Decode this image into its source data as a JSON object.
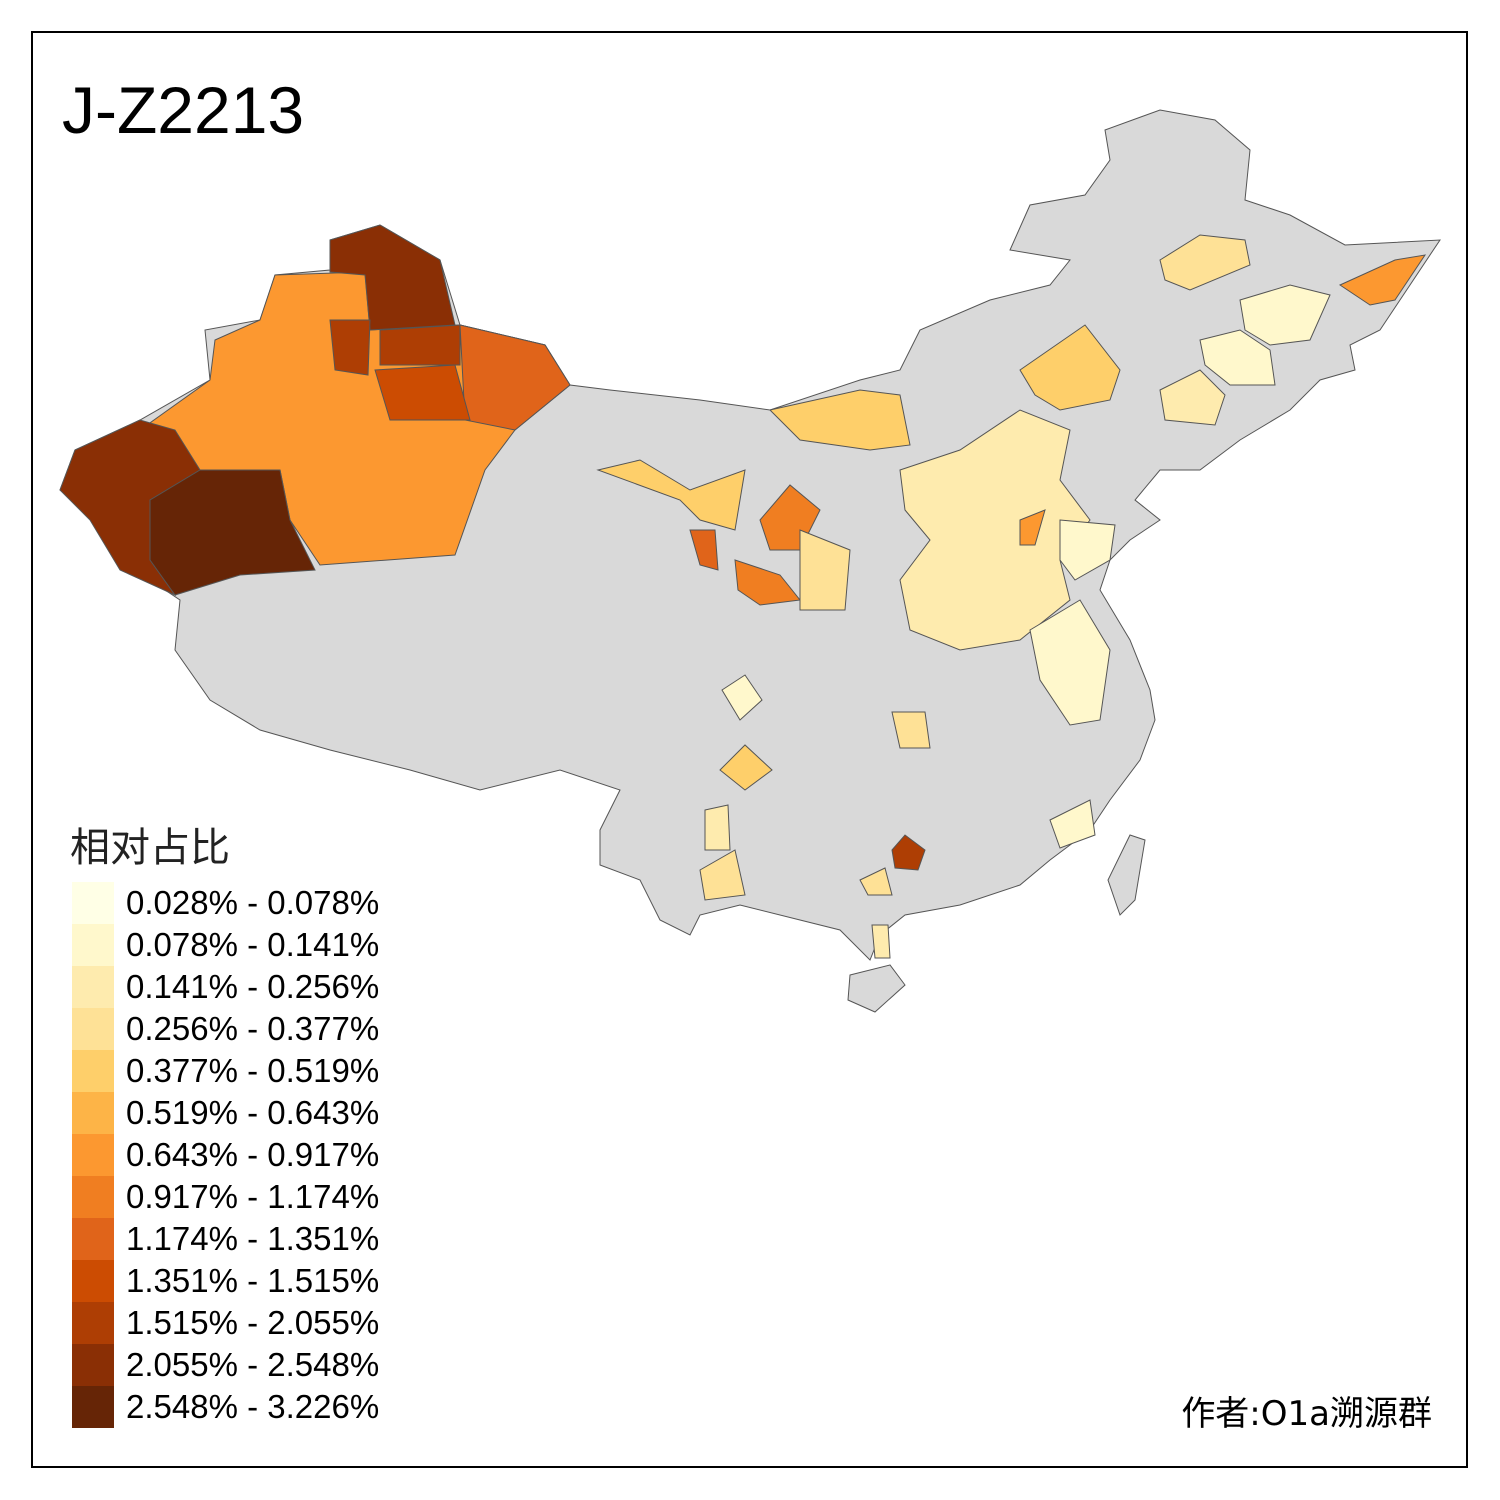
{
  "title": "J-Z2213",
  "legend": {
    "title": "相对占比",
    "bins": [
      {
        "label": "0.028% - 0.078%",
        "color": "#FFFFE6"
      },
      {
        "label": "0.078% - 0.141%",
        "color": "#FFF8CC"
      },
      {
        "label": "0.141% - 0.256%",
        "color": "#FEEBAE"
      },
      {
        "label": "0.256% - 0.377%",
        "color": "#FEE196"
      },
      {
        "label": "0.377% - 0.519%",
        "color": "#FECF6A"
      },
      {
        "label": "0.519% - 0.643%",
        "color": "#FDB447"
      },
      {
        "label": "0.643% - 0.917%",
        "color": "#FC9830"
      },
      {
        "label": "0.917% - 1.174%",
        "color": "#F07E21"
      },
      {
        "label": "1.174% - 1.351%",
        "color": "#E0641A"
      },
      {
        "label": "1.351% - 1.515%",
        "color": "#CC4C02"
      },
      {
        "label": "1.515% - 2.055%",
        "color": "#AE3E04"
      },
      {
        "label": "2.055% - 2.548%",
        "color": "#8A2F05"
      },
      {
        "label": "2.548% - 3.226%",
        "color": "#662506"
      }
    ]
  },
  "no_data_color": "#D9D9D9",
  "author": "作者:O1a溯源群"
}
